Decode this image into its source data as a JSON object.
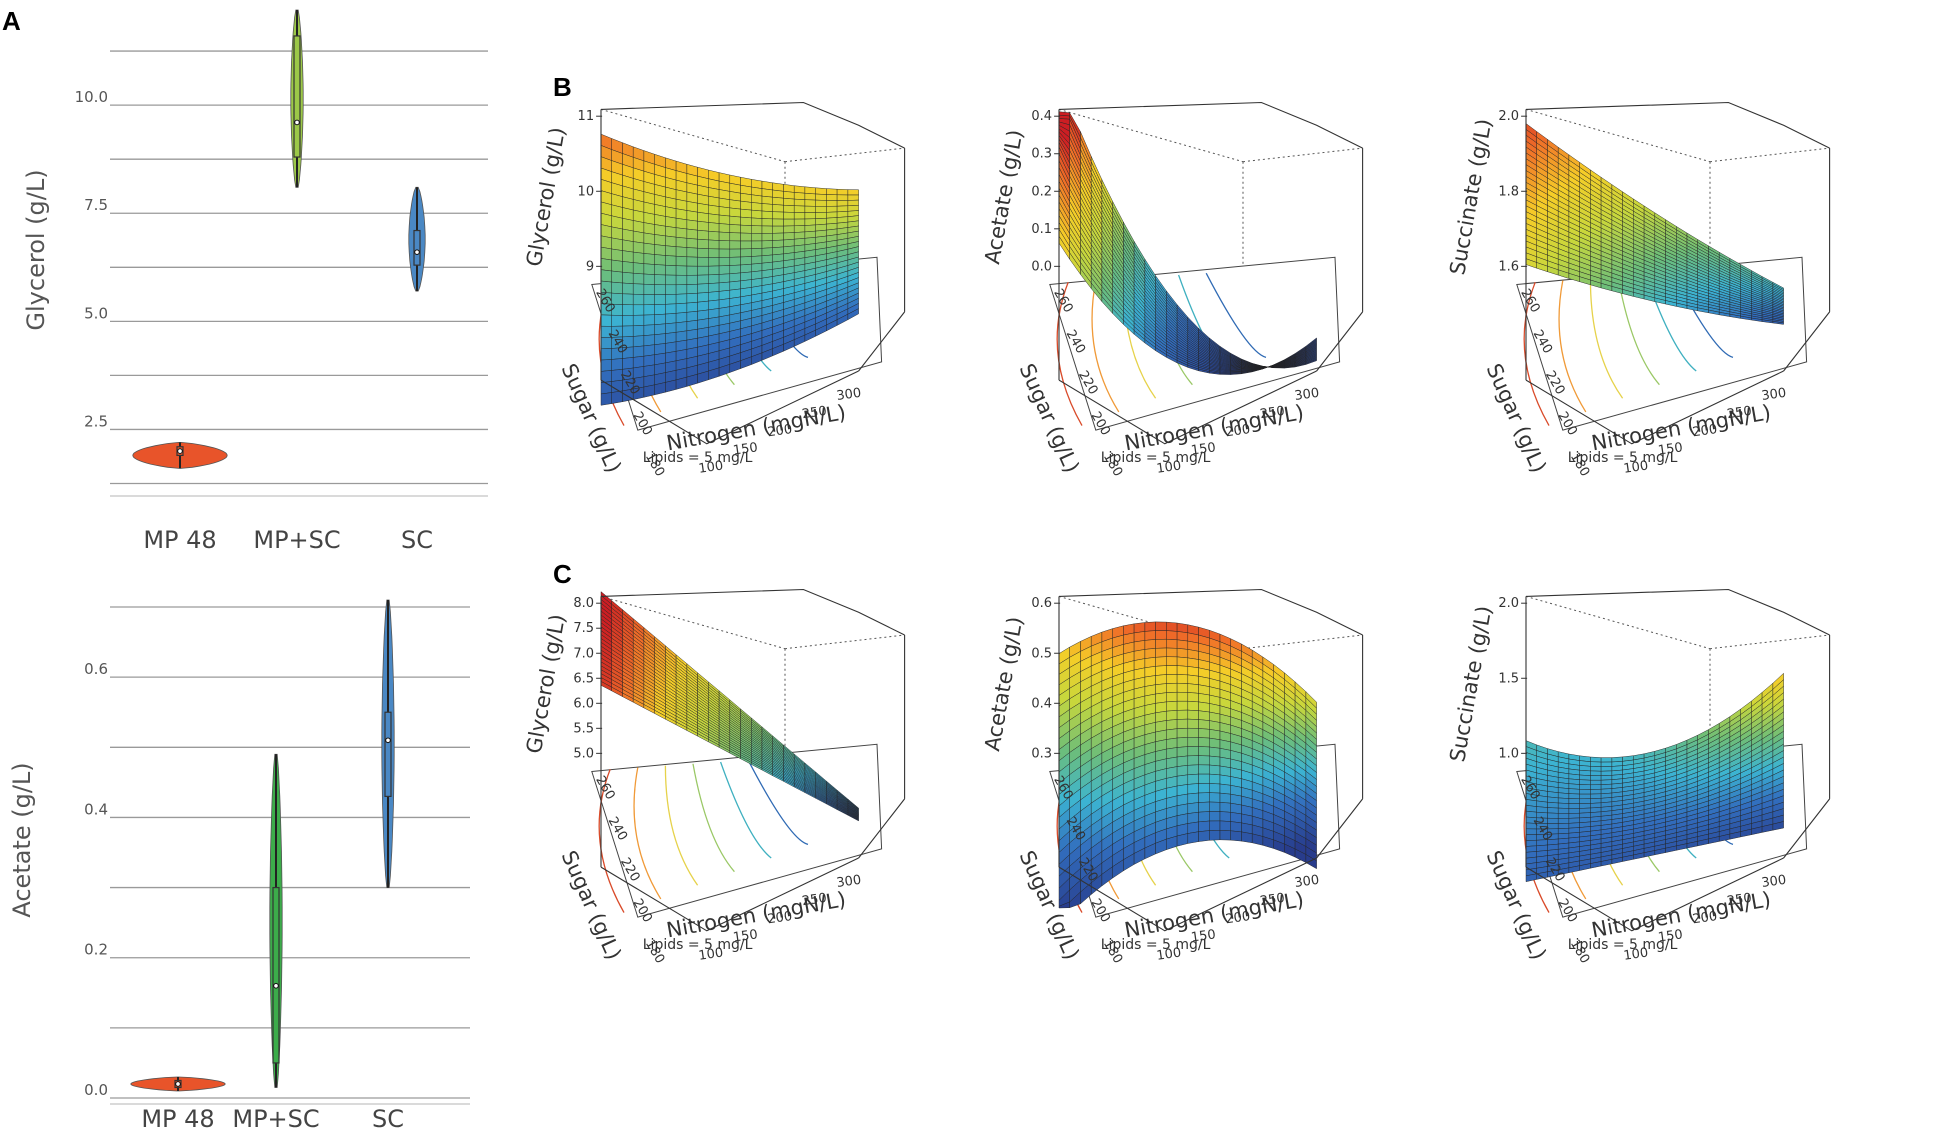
{
  "panels": {
    "a": "A",
    "b": "B",
    "c": "C"
  },
  "chart_data": [
    {
      "type": "violin",
      "id": "glycerol_violin",
      "title": "",
      "xlabel": "",
      "ylabel": "Glycerol (g/L)",
      "categories": [
        "MP 48",
        "MP+SC",
        "SC"
      ],
      "ylim": [
        1.1,
        12.2
      ],
      "yticks": [
        2.5,
        5.0,
        7.5,
        10.0
      ],
      "ytick_labels": [
        "2.5",
        "5.0",
        "7.5",
        "10.0"
      ],
      "colors": [
        "#e8542a",
        "#9cc848",
        "#4a88c4"
      ],
      "series": [
        {
          "name": "MP 48",
          "min": 1.6,
          "q1": 1.9,
          "median": 2.0,
          "q3": 2.1,
          "max": 2.2
        },
        {
          "name": "MP+SC",
          "min": 8.1,
          "q1": 8.8,
          "median": 9.6,
          "q3": 11.6,
          "max": 12.2
        },
        {
          "name": "SC",
          "min": 5.7,
          "q1": 6.3,
          "median": 6.6,
          "q3": 7.1,
          "max": 8.1
        }
      ]
    },
    {
      "type": "violin",
      "id": "acetate_violin",
      "title": "",
      "xlabel": "",
      "ylabel": "Acetate (g/L)",
      "categories": [
        "MP 48",
        "MP+SC",
        "SC"
      ],
      "ylim": [
        0.0,
        0.71
      ],
      "yticks": [
        0.0,
        0.2,
        0.4,
        0.6
      ],
      "ytick_labels": [
        "0.0",
        "0.2",
        "0.4",
        "0.6"
      ],
      "colors": [
        "#e8542a",
        "#3cac4a",
        "#4a88c4"
      ],
      "series": [
        {
          "name": "MP 48",
          "min": 0.01,
          "q1": 0.015,
          "median": 0.02,
          "q3": 0.025,
          "max": 0.03
        },
        {
          "name": "MP+SC",
          "min": 0.015,
          "q1": 0.05,
          "median": 0.16,
          "q3": 0.3,
          "max": 0.49
        },
        {
          "name": "SC",
          "min": 0.3,
          "q1": 0.43,
          "median": 0.51,
          "q3": 0.55,
          "max": 0.71
        }
      ]
    },
    {
      "type": "surface3d",
      "id": "B1",
      "zlabel": "Glycerol (g/L)",
      "xlabel": "Nitrogen (mgN/L)",
      "ylabel": "Sugar (g/L)",
      "caption": "Lipids = 5 mg/L",
      "zticks": [
        "9",
        "10",
        "11"
      ],
      "xticks": [
        "100",
        "150",
        "200",
        "250",
        "300"
      ],
      "yticks": [
        "180",
        "200",
        "220",
        "240",
        "260"
      ]
    },
    {
      "type": "surface3d",
      "id": "B2",
      "zlabel": "Acetate (g/L)",
      "xlabel": "Nitrogen (mgN/L)",
      "ylabel": "Sugar (g/L)",
      "caption": "Lipids = 5 mg/L",
      "zticks": [
        "0.0",
        "0.1",
        "0.2",
        "0.3",
        "0.4"
      ],
      "xticks": [
        "100",
        "150",
        "200",
        "250",
        "300"
      ],
      "yticks": [
        "180",
        "200",
        "220",
        "240",
        "260"
      ]
    },
    {
      "type": "surface3d",
      "id": "B3",
      "zlabel": "Succinate (g/L)",
      "xlabel": "Nitrogen (mgN/L)",
      "ylabel": "Sugar (g/L)",
      "caption": "Lipids = 5 mg/L",
      "zticks": [
        "1.6",
        "1.8",
        "2.0"
      ],
      "xticks": [
        "100",
        "150",
        "200",
        "250",
        "300"
      ],
      "yticks": [
        "180",
        "200",
        "220",
        "240",
        "260"
      ]
    },
    {
      "type": "surface3d",
      "id": "C1",
      "zlabel": "Glycerol (g/L)",
      "xlabel": "Nitrogen (mgN/L)",
      "ylabel": "Sugar (g/L)",
      "caption": "Lipids = 5 mg/L",
      "zticks": [
        "5.0",
        "5.5",
        "6.0",
        "6.5",
        "7.0",
        "7.5",
        "8.0"
      ],
      "xticks": [
        "100",
        "150",
        "200",
        "250",
        "300"
      ],
      "yticks": [
        "180",
        "200",
        "220",
        "240",
        "260"
      ]
    },
    {
      "type": "surface3d",
      "id": "C2",
      "zlabel": "Acetate (g/L)",
      "xlabel": "Nitrogen (mgN/L)",
      "ylabel": "Sugar (g/L)",
      "caption": "Lipids = 5 mg/L",
      "zticks": [
        "0.3",
        "0.4",
        "0.5",
        "0.6"
      ],
      "xticks": [
        "100",
        "150",
        "200",
        "250",
        "300"
      ],
      "yticks": [
        "180",
        "200",
        "220",
        "240",
        "260"
      ]
    },
    {
      "type": "surface3d",
      "id": "C3",
      "zlabel": "Succinate (g/L)",
      "xlabel": "Nitrogen (mgN/L)",
      "ylabel": "Sugar (g/L)",
      "caption": "Lipids = 5 mg/L",
      "zticks": [
        "1.0",
        "1.5",
        "2.0"
      ],
      "xticks": [
        "100",
        "150",
        "200",
        "250",
        "300"
      ],
      "yticks": [
        "180",
        "200",
        "220",
        "240",
        "260"
      ]
    }
  ]
}
